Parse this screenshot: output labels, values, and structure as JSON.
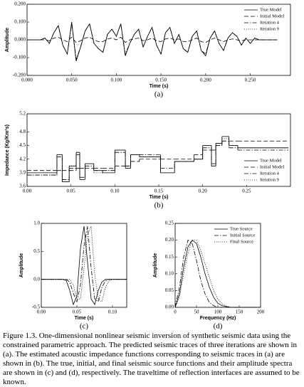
{
  "chart_data": [
    {
      "type": "line",
      "ylabel": "Amplitude",
      "xlabel": "Time (s)",
      "panel": "(a)",
      "legend": "upper right",
      "xlim": [
        0,
        0.295
      ],
      "xticks": [
        {
          "value": 0,
          "label": "0.000"
        },
        {
          "value": 0.05,
          "label": "0.050"
        },
        {
          "value": 0.1,
          "label": "0.100"
        },
        {
          "value": 0.15,
          "label": "0.150"
        },
        {
          "value": 0.2,
          "label": "0.200"
        },
        {
          "value": 0.25,
          "label": "0.250"
        }
      ],
      "ylim": [
        -0.2,
        0.2
      ],
      "yticks": [
        {
          "value": -0.2,
          "label": "-0.200"
        },
        {
          "value": -0.1,
          "label": "-0.100"
        },
        {
          "value": 0,
          "label": "0.000"
        },
        {
          "value": 0.1,
          "label": "0.100"
        },
        {
          "value": 0.2,
          "label": "0.200"
        }
      ],
      "x": [
        0,
        0.005,
        0.01,
        0.015,
        0.02,
        0.025,
        0.03,
        0.035,
        0.04,
        0.045,
        0.05,
        0.055,
        0.06,
        0.065,
        0.07,
        0.075,
        0.08,
        0.085,
        0.09,
        0.095,
        0.1,
        0.105,
        0.11,
        0.115,
        0.12,
        0.125,
        0.13,
        0.135,
        0.14,
        0.145,
        0.15,
        0.155,
        0.16,
        0.165,
        0.17,
        0.175,
        0.18,
        0.185,
        0.19,
        0.195,
        0.2,
        0.205,
        0.21,
        0.215,
        0.22,
        0.225,
        0.23,
        0.235,
        0.24,
        0.245,
        0.25,
        0.255,
        0.26,
        0.265,
        0.27,
        0.275,
        0.28
      ],
      "series": [
        {
          "name": "True Model",
          "color": "#000000",
          "dash": "solid",
          "values": [
            0,
            0,
            0,
            0,
            0.01,
            -0.02,
            0.04,
            0.08,
            -0.03,
            -0.08,
            0.1,
            -0.12,
            -0.04,
            0.05,
            0.09,
            -0.02,
            -0.05,
            -0.07,
            0.03,
            0.06,
            0.02,
            0.09,
            -0.09,
            -0.02,
            0.03,
            0.06,
            -0.04,
            0.02,
            0.07,
            -0.03,
            -0.08,
            0.04,
            0.07,
            -0.02,
            0.03,
            -0.05,
            -0.07,
            0.02,
            0.05,
            -0.06,
            -0.09,
            0.01,
            0.05,
            -0.02,
            -0.06,
            0.01,
            0.04,
            0.02,
            -0.03,
            0.01,
            -0.02,
            0.01,
            0,
            0,
            0,
            0,
            0
          ]
        },
        {
          "name": "Initial Model",
          "color": "#000000",
          "dash": "dashed",
          "values": [
            0,
            0,
            0,
            0,
            0,
            -0.005,
            0.01,
            0.015,
            0,
            -0.01,
            0.015,
            -0.015,
            -0.005,
            0.01,
            0.015,
            0,
            -0.01,
            -0.01,
            0.005,
            0.01,
            0,
            0.015,
            -0.015,
            0,
            0.005,
            0.01,
            -0.005,
            0,
            0.01,
            -0.005,
            -0.01,
            0.005,
            0.01,
            0,
            0.005,
            -0.01,
            -0.01,
            0,
            0.01,
            -0.01,
            -0.015,
            0,
            0.01,
            0,
            -0.01,
            0,
            0.005,
            0,
            -0.005,
            0,
            0,
            0,
            0,
            0,
            0,
            0,
            0
          ]
        },
        {
          "name": "Iteration 4",
          "color": "#000000",
          "dash": "dashdot",
          "values": [
            0,
            0,
            0,
            0,
            0.01,
            -0.02,
            0.04,
            0.08,
            -0.03,
            -0.08,
            0.09,
            -0.11,
            -0.04,
            0.05,
            0.09,
            -0.02,
            -0.05,
            -0.07,
            0.03,
            0.06,
            0.02,
            0.09,
            -0.08,
            -0.02,
            0.03,
            0.06,
            -0.04,
            0.02,
            0.07,
            -0.03,
            -0.08,
            0.04,
            0.07,
            -0.02,
            0.03,
            -0.05,
            -0.07,
            0.02,
            0.05,
            -0.06,
            -0.08,
            0.01,
            0.05,
            -0.02,
            -0.06,
            0.01,
            0.04,
            0.02,
            -0.03,
            0.01,
            -0.02,
            0.01,
            0,
            0,
            0,
            0,
            0
          ]
        },
        {
          "name": "Iteration 9",
          "color": "#000000",
          "dash": "dotted",
          "values": [
            0,
            0,
            0,
            0,
            0.01,
            -0.02,
            0.04,
            0.08,
            -0.03,
            -0.08,
            0.1,
            -0.115,
            -0.04,
            0.05,
            0.09,
            -0.02,
            -0.05,
            -0.07,
            0.03,
            0.06,
            0.02,
            0.09,
            -0.09,
            -0.02,
            0.03,
            0.06,
            -0.04,
            0.02,
            0.07,
            -0.03,
            -0.08,
            0.04,
            0.07,
            -0.02,
            0.03,
            -0.05,
            -0.07,
            0.02,
            0.05,
            -0.06,
            -0.09,
            0.01,
            0.05,
            -0.02,
            -0.06,
            0.01,
            0.04,
            0.02,
            -0.03,
            0.01,
            -0.02,
            0.01,
            0,
            0,
            0,
            0,
            0
          ]
        }
      ]
    },
    {
      "type": "step",
      "ylabel": "Impedance (Kg/Km²s)",
      "xlabel": "Time (s)",
      "panel": "(b)",
      "legend": "lower right",
      "xlim": [
        0,
        0.3
      ],
      "xticks": [
        {
          "value": 0,
          "label": "0.00"
        },
        {
          "value": 0.05,
          "label": "0.05"
        },
        {
          "value": 0.1,
          "label": "0.10"
        },
        {
          "value": 0.15,
          "label": "0.15"
        },
        {
          "value": 0.2,
          "label": "0.20"
        },
        {
          "value": 0.25,
          "label": "0.25"
        }
      ],
      "ylim": [
        3.6,
        5.2
      ],
      "yticks": [
        3.6,
        3.9,
        4.2,
        4.5,
        4.8,
        5.2
      ],
      "x": [
        0,
        0.034,
        0.04,
        0.048,
        0.056,
        0.06,
        0.066,
        0.076,
        0.086,
        0.1,
        0.112,
        0.118,
        0.128,
        0.152,
        0.168,
        0.19,
        0.2,
        0.21,
        0.215,
        0.222,
        0.23,
        0.24
      ],
      "series": [
        {
          "name": "True Model",
          "color": "#000000",
          "dash": "solid",
          "values": [
            3.9,
            4.3,
            3.7,
            4.05,
            4.35,
            3.75,
            4.1,
            3.95,
            3.9,
            4.4,
            4.0,
            4.3,
            4.25,
            3.9,
            4.15,
            4.2,
            4.5,
            4.05,
            4.55,
            4.7,
            4.5,
            4.45
          ]
        },
        {
          "name": "Initial Model",
          "color": "#000000",
          "dash": "dashed",
          "values": [
            3.95,
            3.95,
            3.95,
            3.95,
            4.0,
            4.0,
            4.0,
            4.0,
            4.0,
            4.05,
            4.05,
            4.15,
            4.2,
            4.2,
            4.2,
            4.3,
            4.4,
            4.4,
            4.5,
            4.6,
            4.6,
            4.6
          ]
        },
        {
          "name": "Iteration 4",
          "color": "#000000",
          "dash": "dashdot",
          "values": [
            3.85,
            4.25,
            3.75,
            4.0,
            4.3,
            3.8,
            4.05,
            3.95,
            3.95,
            4.35,
            4.05,
            4.3,
            4.3,
            4.0,
            4.15,
            4.2,
            4.45,
            4.1,
            4.5,
            4.6,
            4.45,
            4.4
          ]
        },
        {
          "name": "Iteration 9",
          "color": "#000000",
          "dash": "dotted",
          "values": [
            3.85,
            4.3,
            3.7,
            4.05,
            4.35,
            3.8,
            4.1,
            3.9,
            3.95,
            4.4,
            4.0,
            4.3,
            4.25,
            3.9,
            4.15,
            4.2,
            4.5,
            4.05,
            4.55,
            4.65,
            4.5,
            4.45
          ]
        }
      ]
    },
    {
      "type": "line",
      "ylabel": "Amplitude",
      "xlabel": "Time (s)",
      "panel": "(c)",
      "xlim": [
        0,
        0.12
      ],
      "xticks": [
        {
          "value": 0,
          "label": "0.00"
        },
        {
          "value": 0.05,
          "label": "0.05"
        },
        {
          "value": 0.1,
          "label": "0.10"
        }
      ],
      "ylim": [
        -0.5,
        1.0
      ],
      "yticks": [
        -0.5,
        {
          "value": 0,
          "label": "0.0"
        },
        0.5,
        {
          "value": 1.0,
          "label": "1.0"
        }
      ],
      "x": [
        0,
        0.005,
        0.01,
        0.015,
        0.02,
        0.025,
        0.03,
        0.035,
        0.04,
        0.045,
        0.05,
        0.055,
        0.06,
        0.065,
        0.07,
        0.075,
        0.08,
        0.085,
        0.09,
        0.095,
        0.1,
        0.105,
        0.11,
        0.115,
        0.12
      ],
      "series": [
        {
          "color": "#000000",
          "dash": "solid",
          "values": [
            0,
            0,
            0,
            0,
            0,
            0,
            0,
            -0.02,
            -0.2,
            -0.45,
            -0.3,
            0.55,
            0.95,
            0.3,
            -0.35,
            -0.45,
            -0.2,
            -0.05,
            0,
            0,
            0,
            0,
            0,
            0,
            0
          ]
        },
        {
          "color": "#000000",
          "dash": "dashdot",
          "values": [
            0,
            0,
            0,
            0,
            0,
            0,
            0,
            0,
            -0.05,
            -0.25,
            -0.4,
            -0.1,
            0.6,
            0.95,
            0.2,
            -0.35,
            -0.4,
            -0.15,
            -0.03,
            0,
            0,
            0,
            0,
            0,
            0
          ]
        },
        {
          "color": "#000000",
          "dash": "dotted",
          "values": [
            0,
            0,
            0,
            0,
            0,
            0,
            0,
            0,
            0,
            -0.1,
            -0.35,
            -0.35,
            0.2,
            0.8,
            0.95,
            0.1,
            -0.35,
            -0.4,
            -0.15,
            -0.03,
            0,
            0,
            0,
            0,
            0
          ]
        }
      ]
    },
    {
      "type": "line",
      "ylabel": "Amplitude",
      "xlabel": "Frequency (Hz)",
      "panel": "(d)",
      "legend": "upper right",
      "xlim": [
        0,
        200
      ],
      "xticks": [
        0,
        50,
        100,
        150,
        200
      ],
      "ylim": [
        0,
        0.25
      ],
      "yticks": [
        {
          "value": 0,
          "label": "0.00"
        },
        0.05,
        {
          "value": 0.1,
          "label": "0.10"
        },
        0.15,
        {
          "value": 0.2,
          "label": "0.20"
        },
        0.25
      ],
      "x": [
        0,
        10,
        20,
        30,
        40,
        50,
        60,
        70,
        80,
        90,
        100,
        110,
        120,
        130,
        140,
        150,
        160,
        170,
        180,
        190,
        200
      ],
      "series": [
        {
          "name": "True Source",
          "color": "#000000",
          "dash": "solid",
          "values": [
            0,
            0.04,
            0.12,
            0.18,
            0.2,
            0.19,
            0.15,
            0.1,
            0.06,
            0.03,
            0.012,
            0.005,
            0.002,
            0,
            0,
            0,
            0,
            0,
            0,
            0,
            0
          ]
        },
        {
          "name": "Initial Source",
          "color": "#000000",
          "dash": "dashdot",
          "values": [
            0,
            0.06,
            0.15,
            0.2,
            0.19,
            0.14,
            0.08,
            0.04,
            0.015,
            0.005,
            0,
            0,
            0,
            0,
            0,
            0,
            0,
            0,
            0,
            0,
            0
          ]
        },
        {
          "name": "Final Source",
          "color": "#000000",
          "dash": "dotted",
          "values": [
            0,
            0.03,
            0.1,
            0.16,
            0.2,
            0.2,
            0.17,
            0.13,
            0.09,
            0.05,
            0.025,
            0.01,
            0.004,
            0,
            0,
            0,
            0,
            0,
            0,
            0,
            0
          ]
        }
      ]
    }
  ],
  "caption": "Figure 1.3.  One-dimensional nonlinear seismic inversion of synthetic seismic data using the constrained parametric approach.  The predicted seismic traces of three iterations are shown in (a).  The estimated acoustic impedance functions corresponding to seismic traces in (a) are shown in (b).  The true, initial, and final seismic source functions and their amplitude spectra are shown in (c) and (d), respectively.  The traveltime of reflection interfaces are assumed to be known."
}
